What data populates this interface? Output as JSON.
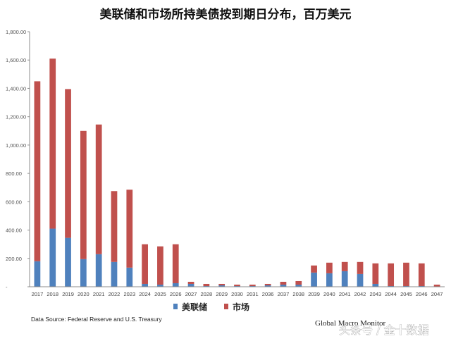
{
  "colors": {
    "fed": "#4f81bd",
    "market": "#c0504d",
    "axis": "#8c8c8c"
  },
  "chart_data": {
    "type": "bar",
    "stacked": true,
    "title": "美联储和市场所持美债按到期日分布，百万美元",
    "categories": [
      "2017",
      "2018",
      "2019",
      "2020",
      "2021",
      "2022",
      "2023",
      "2024",
      "2025",
      "2026",
      "2027",
      "2028",
      "2029",
      "2030",
      "2031",
      "2036",
      "2037",
      "2038",
      "2039",
      "2040",
      "2041",
      "2042",
      "2043",
      "2044",
      "2045",
      "2046",
      "2047"
    ],
    "series": [
      {
        "name": "美联储",
        "color": "#4f81bd",
        "values": [
          180,
          410,
          345,
          195,
          230,
          175,
          135,
          20,
          15,
          25,
          20,
          5,
          10,
          5,
          5,
          10,
          15,
          15,
          100,
          95,
          110,
          90,
          20,
          5,
          5,
          5,
          0
        ]
      },
      {
        "name": "市场",
        "color": "#c0504d",
        "values": [
          1270,
          1200,
          1050,
          905,
          915,
          500,
          550,
          280,
          270,
          275,
          15,
          15,
          10,
          10,
          10,
          10,
          20,
          25,
          50,
          75,
          65,
          85,
          145,
          160,
          165,
          160,
          15
        ]
      }
    ],
    "ylim": [
      0,
      1800
    ],
    "yticks": [
      "-",
      "200.00",
      "400.00",
      "600.00",
      "800.00",
      "1,000.00",
      "1,200.00",
      "1,400.00",
      "1,600.00",
      "1,800.00"
    ],
    "grid": false,
    "legend_position": "bottom",
    "source": "Data Source:  Federal Reserve and U.S. Treasury",
    "credit": "Global Macro Monitor",
    "watermark": "头条号 / 金十数据"
  }
}
